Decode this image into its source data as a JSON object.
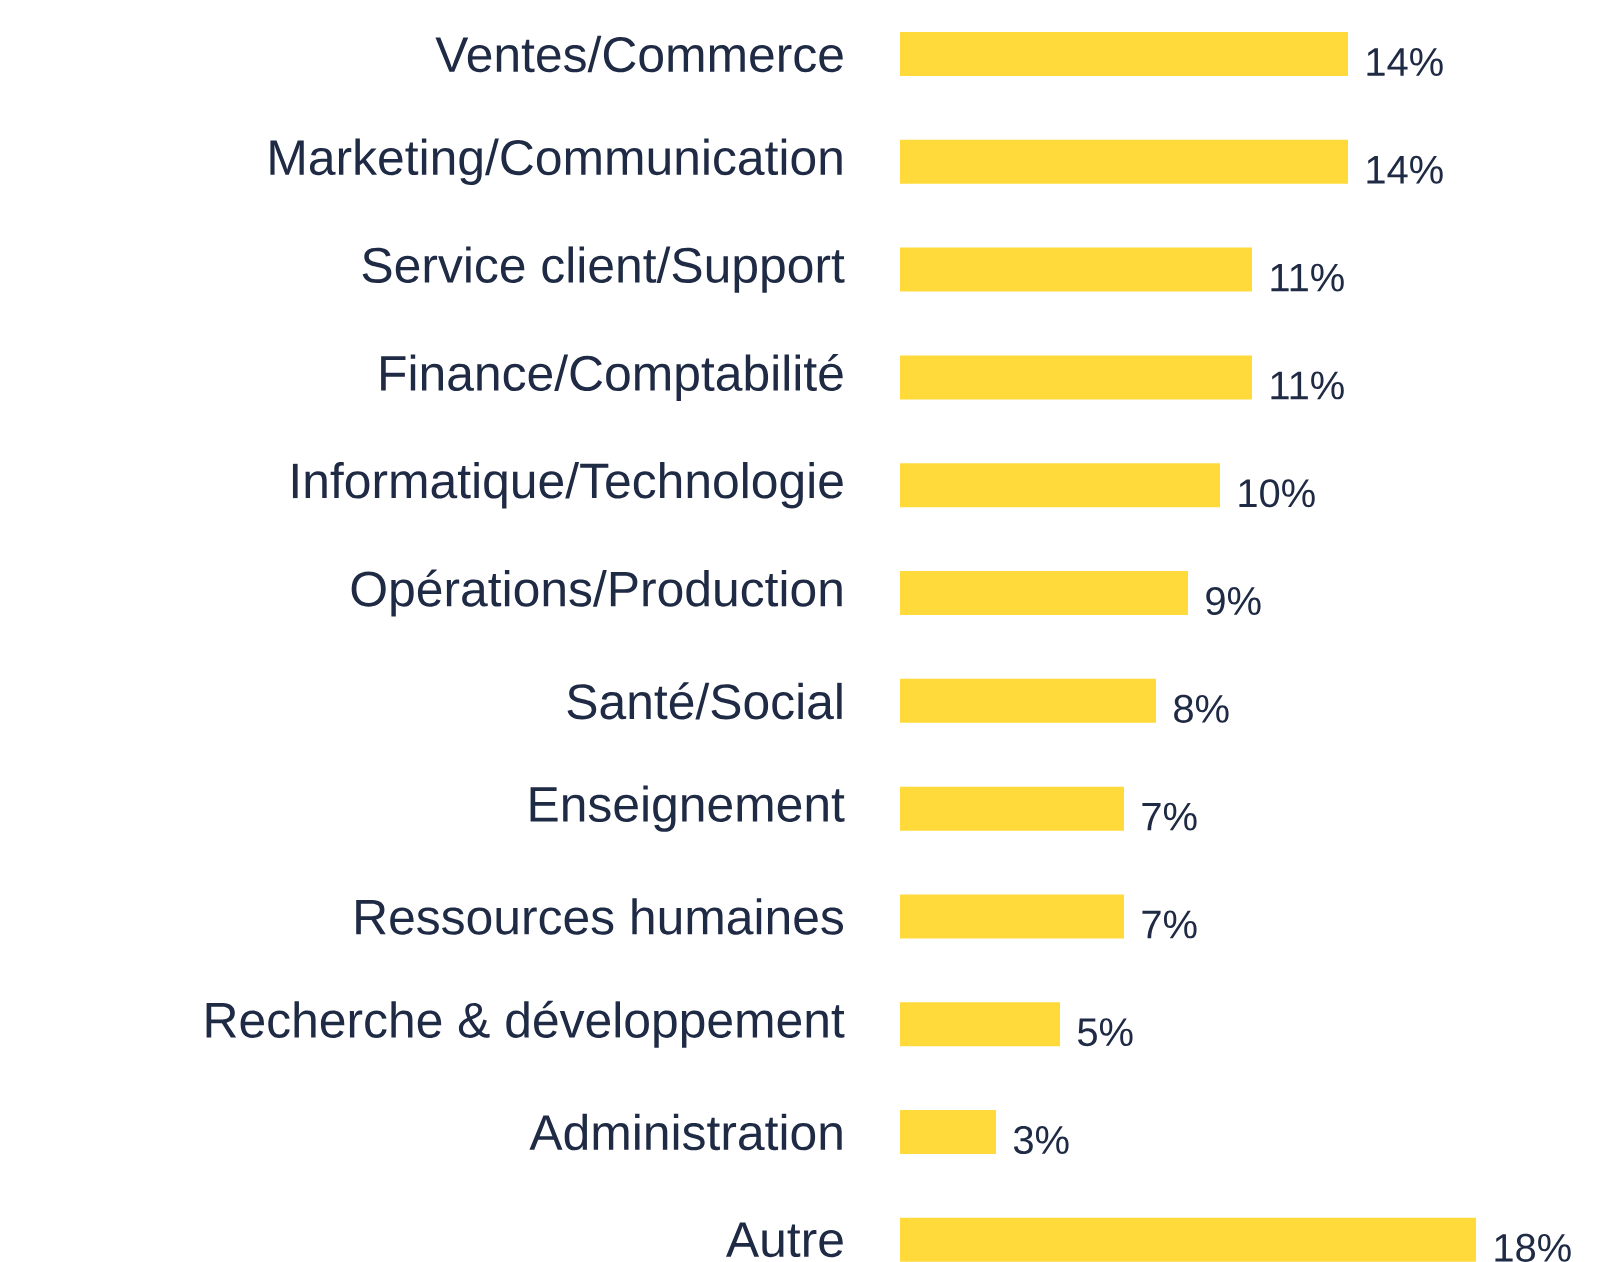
{
  "chart_data": {
    "type": "bar",
    "orientation": "horizontal",
    "color": "#ffda3a",
    "categories": [
      "Ventes/Commerce",
      "Marketing/Communication",
      "Service client/Support",
      "Finance/Comptabilité",
      "Informatique/Technologie",
      "Opérations/Production",
      "Santé/Social",
      "Enseignement",
      "Ressources humaines",
      "Recherche & développement",
      "Administration",
      "Autre"
    ],
    "values": [
      14,
      14,
      11,
      11,
      10,
      9,
      8,
      7,
      7,
      5,
      3,
      18
    ],
    "value_labels": [
      "14%",
      "14%",
      "11%",
      "11%",
      "10%",
      "9%",
      "8%",
      "7%",
      "7%",
      "5%",
      "3%",
      "18%"
    ]
  }
}
